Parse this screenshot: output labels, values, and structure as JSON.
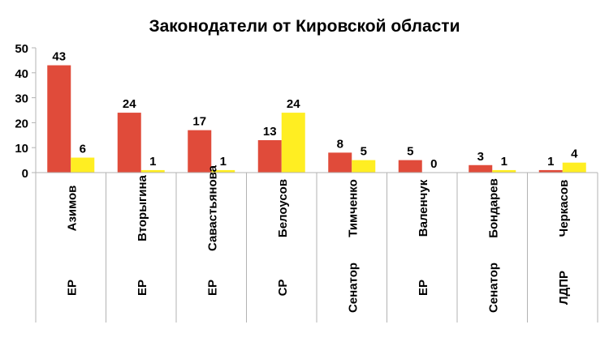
{
  "chart_data": {
    "type": "bar",
    "title": "Законодатели от Кировской области",
    "categories": [
      {
        "name": "Азимов",
        "party": "ЕР"
      },
      {
        "name": "Вторыгина",
        "party": "ЕР"
      },
      {
        "name": "Савастьянова",
        "party": "ЕР"
      },
      {
        "name": "Белоусов",
        "party": "СР"
      },
      {
        "name": "Тимченко",
        "party": "Сенатор"
      },
      {
        "name": "Валенчук",
        "party": "ЕР"
      },
      {
        "name": "Бондарев",
        "party": "Сенатор"
      },
      {
        "name": "Черкасов",
        "party": "ЛДПР"
      }
    ],
    "series": [
      {
        "values": [
          43,
          24,
          17,
          13,
          8,
          5,
          3,
          1
        ],
        "color": "#e04b3a"
      },
      {
        "values": [
          6,
          1,
          1,
          24,
          5,
          0,
          1,
          4
        ],
        "color": "#ffee22"
      }
    ],
    "yticks": [
      "0",
      "10",
      "20",
      "30",
      "40",
      "50"
    ],
    "ylim": [
      0,
      50
    ],
    "grid": false,
    "legend": "none"
  }
}
